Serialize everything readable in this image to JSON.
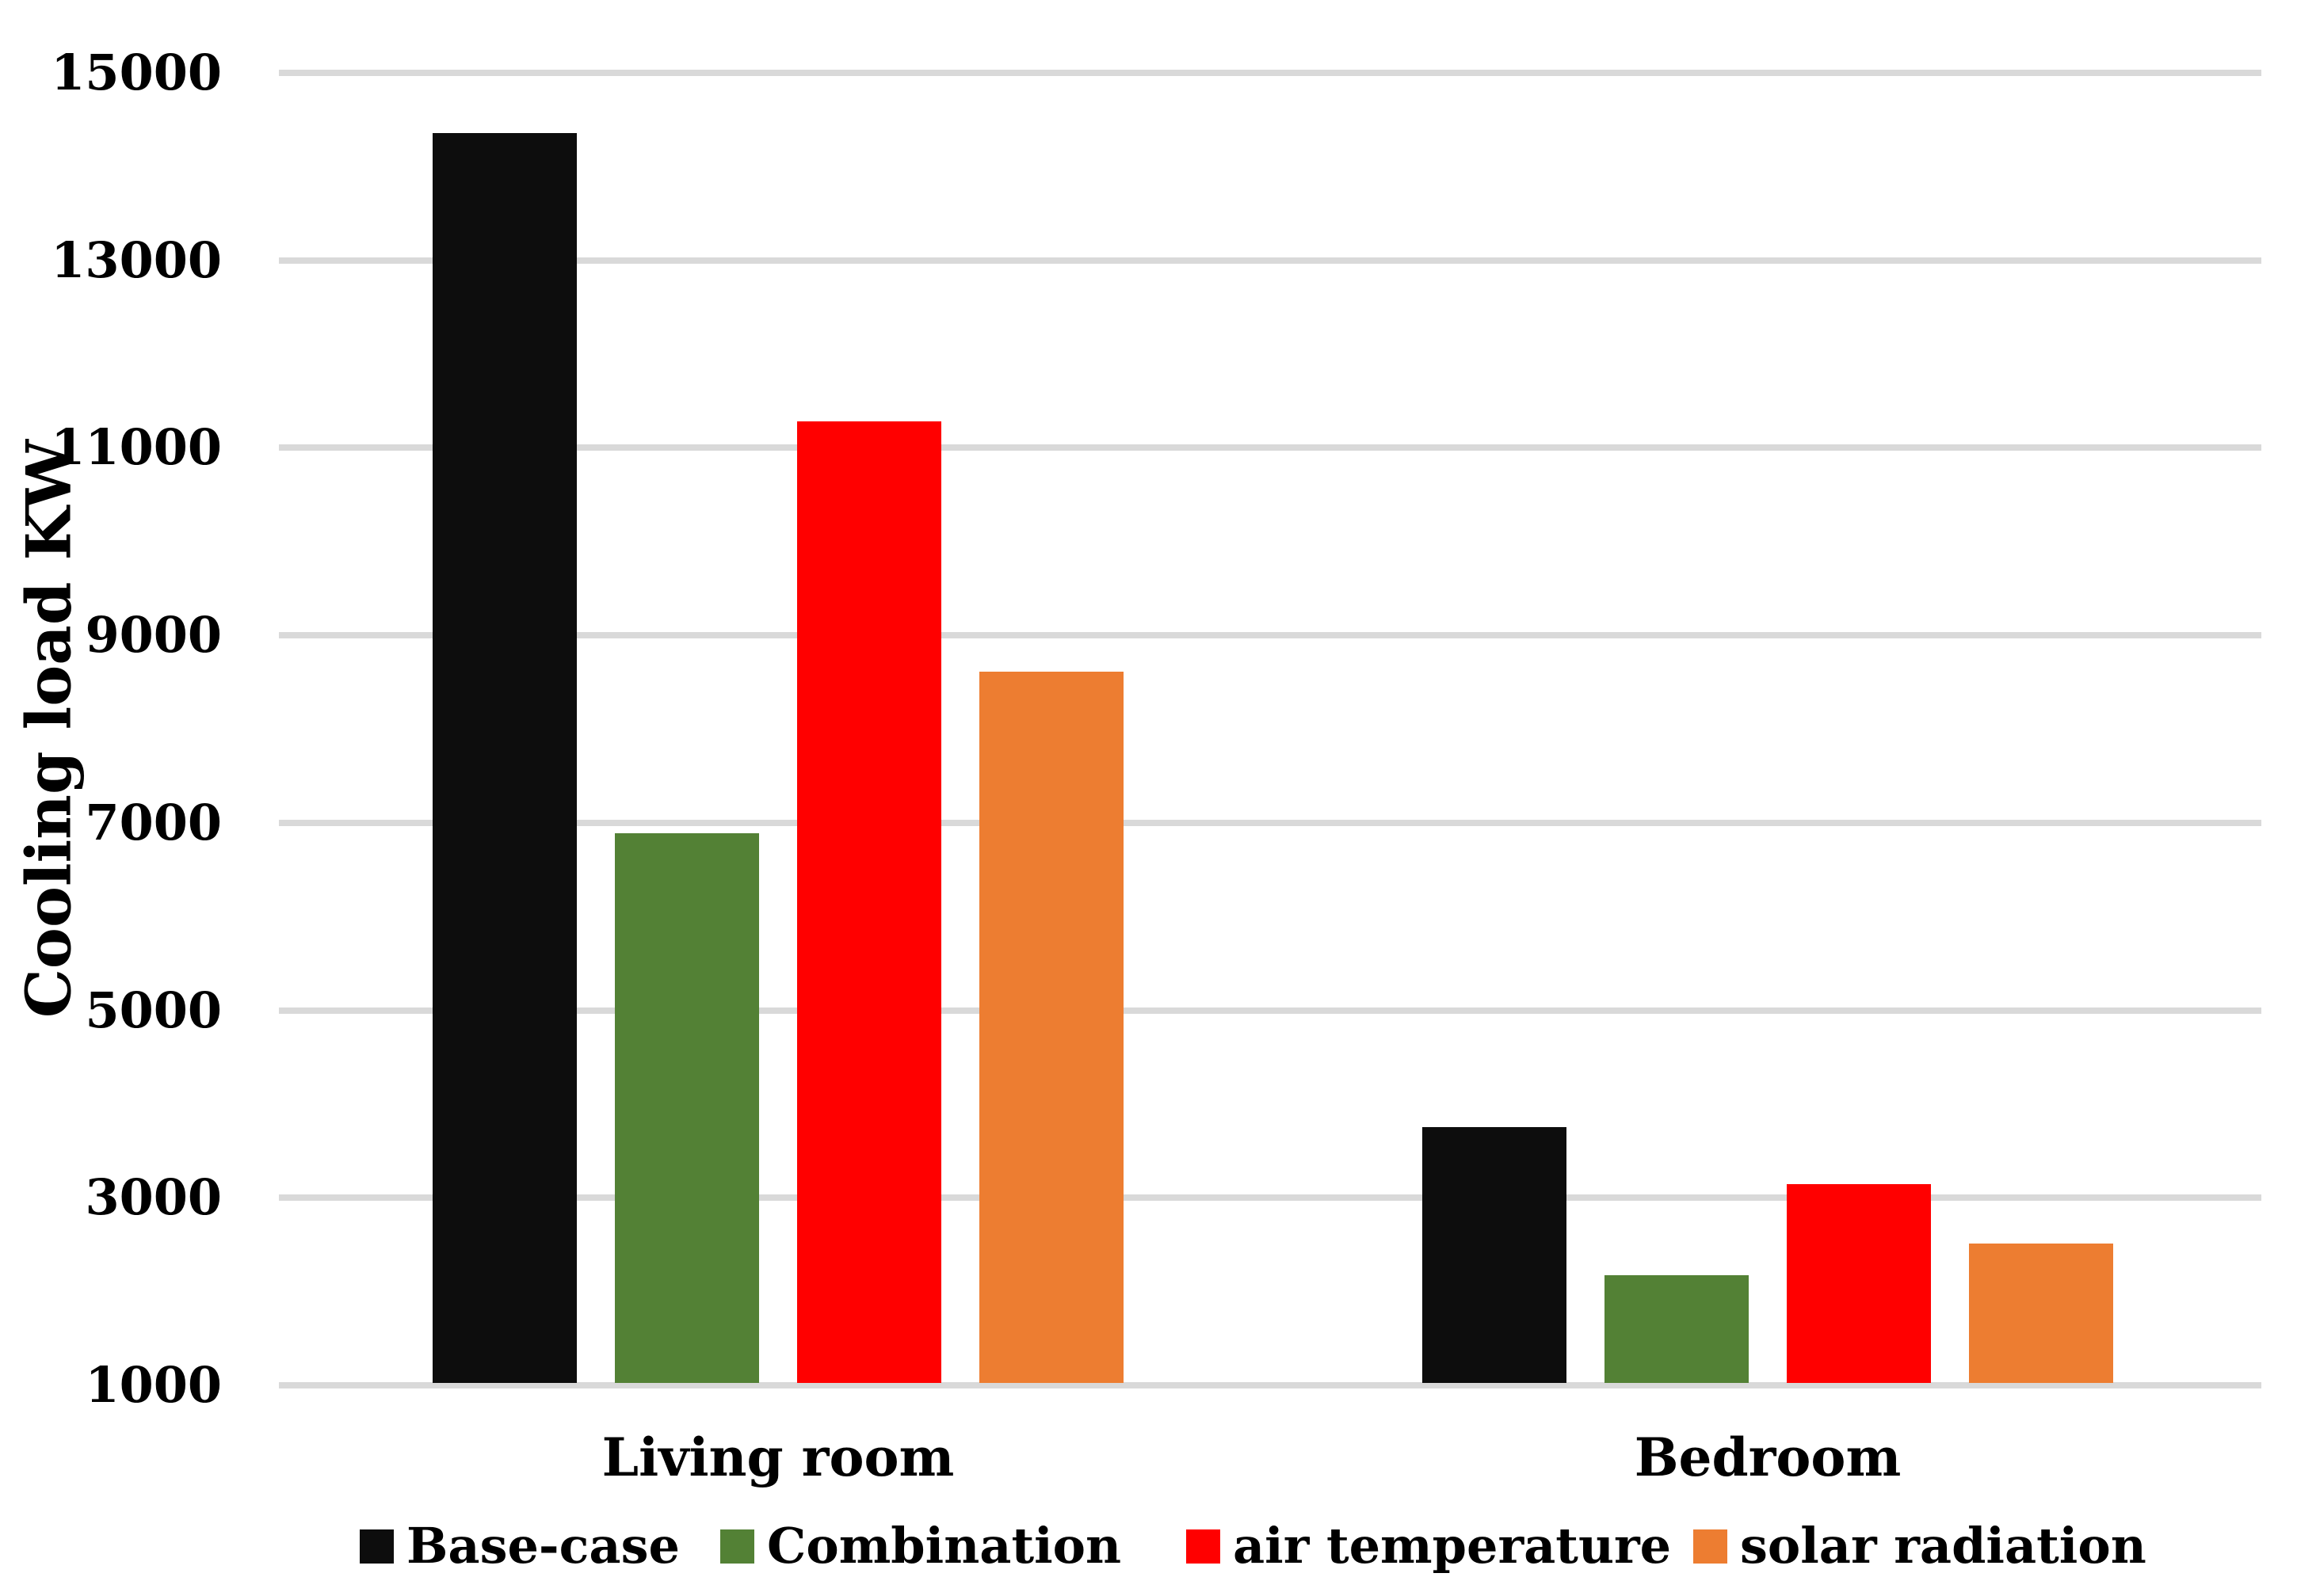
{
  "figure": {
    "background": "#FFFFFF",
    "text_color": "#000000"
  },
  "chart_data": {
    "type": "bar",
    "title": "",
    "xlabel": "",
    "ylabel": "Cooling load KW",
    "categories": [
      "Living room",
      "Bedroom"
    ],
    "series": [
      {
        "name": "Base-case",
        "color": "#0D0D0D",
        "values": [
          14360,
          3755
        ]
      },
      {
        "name": "Combination",
        "color": "#538135",
        "values": [
          6890,
          2175
        ]
      },
      {
        "name": "air temperature",
        "color": "#FF0000",
        "values": [
          11280,
          3145
        ]
      },
      {
        "name": "solar radiation",
        "color": "#ED7D31",
        "values": [
          8610,
          2510
        ]
      }
    ],
    "y_axis": {
      "min": 1000,
      "max": 15000,
      "tick_step": 2000,
      "ticks": [
        15000,
        13000,
        11000,
        9000,
        7000,
        5000,
        3000,
        1000
      ]
    },
    "gridlines": {
      "visible": true,
      "orientation": "horizontal",
      "color": "#D9D9D9"
    },
    "legend_position": "bottom"
  }
}
